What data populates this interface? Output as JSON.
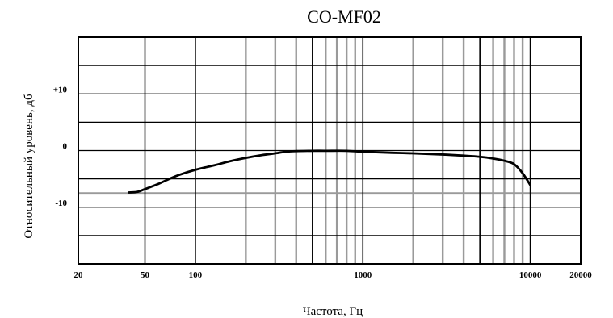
{
  "chart_data": {
    "type": "line",
    "title": "CO-MF02",
    "xlabel": "Частота, Гц",
    "ylabel": "Относительный уровень, дб",
    "x_scale": "log",
    "xlim": [
      20,
      20000
    ],
    "ylim": [
      -20,
      20
    ],
    "grid": true,
    "x_ticks": [
      {
        "value": 20,
        "label": "20"
      },
      {
        "value": 50,
        "label": "50"
      },
      {
        "value": 100,
        "label": "100"
      },
      {
        "value": 1000,
        "label": "1000"
      },
      {
        "value": 10000,
        "label": "10000"
      },
      {
        "value": 20000,
        "label": "20000"
      }
    ],
    "y_ticks": [
      {
        "value": 10,
        "label": "+10"
      },
      {
        "value": 0,
        "label": "0"
      },
      {
        "value": -10,
        "label": "-10"
      }
    ],
    "grid_black_x": [
      50,
      100,
      500,
      1000,
      5000,
      10000
    ],
    "grid_gray_x": [
      200,
      300,
      400,
      600,
      700,
      800,
      900,
      2000,
      3000,
      4000,
      6000,
      7000,
      8000,
      9000
    ],
    "grid_black_y": [
      15,
      10,
      5,
      0,
      -5,
      -10,
      -15
    ],
    "grid_gray_y": [
      -7.5
    ],
    "series": [
      {
        "color": "#000000",
        "x": [
          40,
          45,
          50,
          60,
          70,
          80,
          100,
          130,
          160,
          200,
          250,
          300,
          350,
          400,
          500,
          600,
          800,
          1000,
          1500,
          2000,
          3000,
          4000,
          5000,
          6000,
          7000,
          8000,
          9000,
          10000
        ],
        "y": [
          -7.4,
          -7.3,
          -6.8,
          -5.9,
          -5.0,
          -4.3,
          -3.4,
          -2.6,
          -1.9,
          -1.3,
          -0.8,
          -0.5,
          -0.2,
          -0.1,
          -0.05,
          -0.05,
          -0.05,
          -0.2,
          -0.4,
          -0.5,
          -0.7,
          -0.9,
          -1.1,
          -1.4,
          -1.8,
          -2.4,
          -4.0,
          -6.1
        ]
      }
    ]
  }
}
